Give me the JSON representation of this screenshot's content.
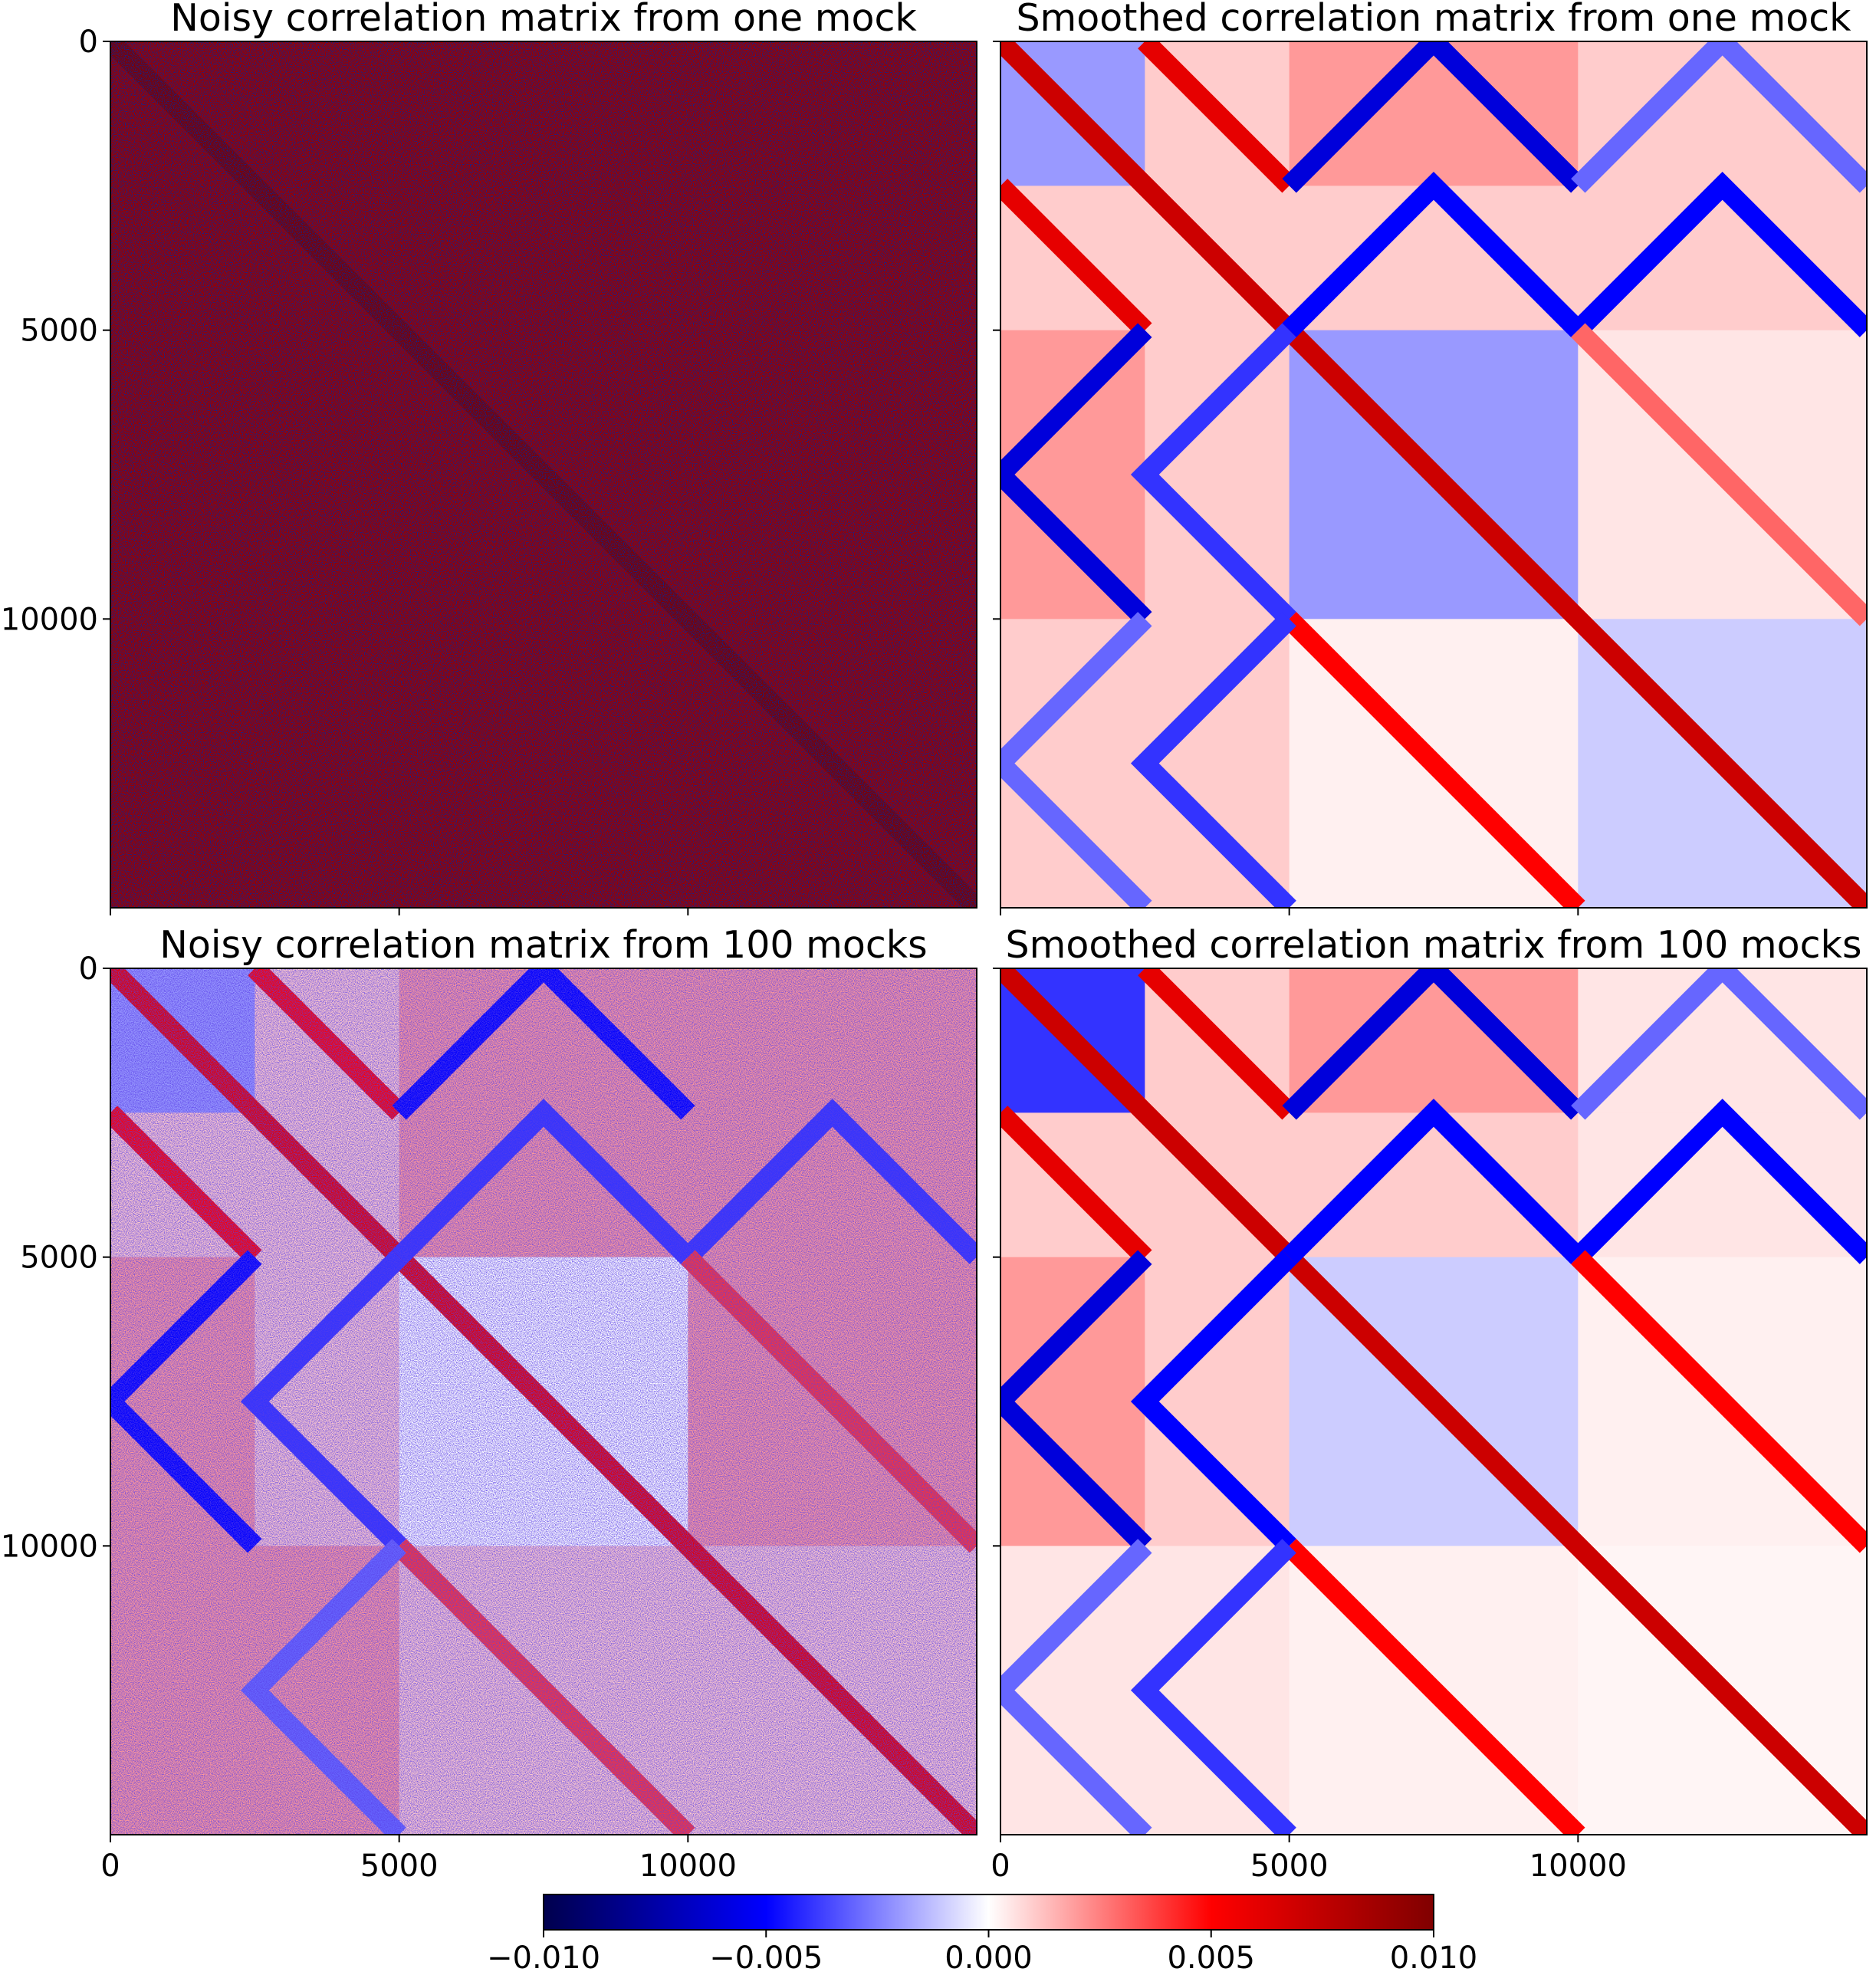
{
  "chart_data": [
    {
      "type": "heatmap",
      "title": "Noisy correlation matrix from one mock",
      "colormap": "seismic",
      "clim": [
        -0.01,
        0.01
      ],
      "xlim": [
        0,
        15000
      ],
      "ylim": [
        15000,
        0
      ],
      "xticks": [
        0,
        5000,
        10000
      ],
      "yticks": [
        0,
        5000,
        10000
      ],
      "block_edges": [
        0,
        2500,
        5000,
        10000,
        15000
      ],
      "blocks": [
        [
          0.009,
          0.009,
          0.009,
          0.009
        ],
        [
          0.009,
          0.009,
          0.009,
          0.009
        ],
        [
          0.009,
          0.009,
          0.009,
          0.009
        ],
        [
          0.009,
          0.009,
          0.009,
          0.009
        ]
      ],
      "segments": [
        {
          "points": [
            [
              0,
              0
            ],
            [
              15000,
              15000
            ]
          ],
          "value": 0.01
        }
      ]
    },
    {
      "type": "heatmap",
      "title": "Smoothed correlation matrix from one mock",
      "colormap": "seismic",
      "clim": [
        -0.01,
        0.01
      ],
      "xlim": [
        0,
        15000
      ],
      "ylim": [
        15000,
        0
      ],
      "xticks": [
        0,
        5000,
        10000
      ],
      "yticks": [
        0,
        5000,
        10000
      ],
      "block_edges": [
        0,
        2500,
        5000,
        10000,
        15000
      ],
      "blocks": [
        [
          -0.002,
          0.001,
          0.002,
          0.001
        ],
        [
          0.001,
          0.001,
          0.001,
          0.001
        ],
        [
          0.002,
          0.001,
          -0.002,
          0.0005
        ],
        [
          0.001,
          0.001,
          0.0003,
          -0.001
        ]
      ],
      "segments": [
        {
          "points": [
            [
              0,
              0
            ],
            [
              15000,
              15000
            ]
          ],
          "value": 0.007
        },
        {
          "points": [
            [
              2500,
              0
            ],
            [
              5000,
              2500
            ]
          ],
          "value": 0.006
        },
        {
          "points": [
            [
              0,
              2500
            ],
            [
              2500,
              5000
            ]
          ],
          "value": 0.006
        },
        {
          "points": [
            [
              5000,
              2500
            ],
            [
              7500,
              0
            ],
            [
              10000,
              2500
            ]
          ],
          "value": -0.006
        },
        {
          "points": [
            [
              10000,
              2500
            ],
            [
              12500,
              0
            ],
            [
              15000,
              2500
            ]
          ],
          "value": -0.003
        },
        {
          "points": [
            [
              5000,
              5000
            ],
            [
              7500,
              2500
            ],
            [
              10000,
              5000
            ]
          ],
          "value": -0.005
        },
        {
          "points": [
            [
              10000,
              5000
            ],
            [
              12500,
              2500
            ],
            [
              15000,
              5000
            ]
          ],
          "value": -0.005
        },
        {
          "points": [
            [
              2500,
              5000
            ],
            [
              0,
              7500
            ],
            [
              2500,
              10000
            ]
          ],
          "value": -0.006
        },
        {
          "points": [
            [
              5000,
              5000
            ],
            [
              2500,
              7500
            ],
            [
              5000,
              10000
            ]
          ],
          "value": -0.004
        },
        {
          "points": [
            [
              10000,
              5000
            ],
            [
              15000,
              10000
            ]
          ],
          "value": 0.003
        },
        {
          "points": [
            [
              5000,
              10000
            ],
            [
              10000,
              15000
            ]
          ],
          "value": 0.005
        },
        {
          "points": [
            [
              2500,
              10000
            ],
            [
              0,
              12500
            ],
            [
              2500,
              15000
            ]
          ],
          "value": -0.003
        },
        {
          "points": [
            [
              5000,
              10000
            ],
            [
              2500,
              12500
            ],
            [
              5000,
              15000
            ]
          ],
          "value": -0.004
        }
      ]
    },
    {
      "type": "heatmap",
      "title": "Noisy correlation matrix from 100 mocks",
      "colormap": "seismic",
      "clim": [
        -0.01,
        0.01
      ],
      "xlim": [
        0,
        15000
      ],
      "ylim": [
        15000,
        0
      ],
      "xticks": [
        0,
        5000,
        10000
      ],
      "yticks": [
        0,
        5000,
        10000
      ],
      "block_edges": [
        0,
        2500,
        5000,
        10000,
        15000
      ],
      "blocks": [
        [
          -0.002,
          0.001,
          0.002,
          0.002
        ],
        [
          0.001,
          0.001,
          0.002,
          0.002
        ],
        [
          0.002,
          0.001,
          0.0,
          0.002
        ],
        [
          0.002,
          0.002,
          0.001,
          0.001
        ]
      ],
      "segments": [
        {
          "points": [
            [
              0,
              0
            ],
            [
              15000,
              15000
            ]
          ],
          "value": 0.006
        },
        {
          "points": [
            [
              2500,
              0
            ],
            [
              5000,
              2500
            ]
          ],
          "value": 0.005
        },
        {
          "points": [
            [
              0,
              2500
            ],
            [
              2500,
              5000
            ]
          ],
          "value": 0.005
        },
        {
          "points": [
            [
              5000,
              2500
            ],
            [
              7500,
              0
            ],
            [
              10000,
              2500
            ]
          ],
          "value": -0.005
        },
        {
          "points": [
            [
              5000,
              5000
            ],
            [
              7500,
              2500
            ],
            [
              10000,
              5000
            ]
          ],
          "value": -0.004
        },
        {
          "points": [
            [
              10000,
              5000
            ],
            [
              12500,
              2500
            ],
            [
              15000,
              5000
            ]
          ],
          "value": -0.004
        },
        {
          "points": [
            [
              2500,
              5000
            ],
            [
              0,
              7500
            ],
            [
              2500,
              10000
            ]
          ],
          "value": -0.005
        },
        {
          "points": [
            [
              5000,
              5000
            ],
            [
              2500,
              7500
            ],
            [
              5000,
              10000
            ]
          ],
          "value": -0.004
        },
        {
          "points": [
            [
              10000,
              5000
            ],
            [
              15000,
              10000
            ]
          ],
          "value": 0.004
        },
        {
          "points": [
            [
              5000,
              10000
            ],
            [
              10000,
              15000
            ]
          ],
          "value": 0.004
        },
        {
          "points": [
            [
              5000,
              10000
            ],
            [
              2500,
              12500
            ],
            [
              5000,
              15000
            ]
          ],
          "value": -0.003
        }
      ]
    },
    {
      "type": "heatmap",
      "title": "Smoothed correlation matrix from 100 mocks",
      "colormap": "seismic",
      "clim": [
        -0.01,
        0.01
      ],
      "xlim": [
        0,
        15000
      ],
      "ylim": [
        15000,
        0
      ],
      "xticks": [
        0,
        5000,
        10000
      ],
      "yticks": [
        0,
        5000,
        10000
      ],
      "block_edges": [
        0,
        2500,
        5000,
        10000,
        15000
      ],
      "blocks": [
        [
          -0.004,
          0.001,
          0.002,
          0.0005
        ],
        [
          0.001,
          0.001,
          0.001,
          0.0005
        ],
        [
          0.002,
          0.001,
          -0.001,
          0.0003
        ],
        [
          0.0005,
          0.0005,
          0.0003,
          0.0002
        ]
      ],
      "segments": [
        {
          "points": [
            [
              0,
              0
            ],
            [
              15000,
              15000
            ]
          ],
          "value": 0.007
        },
        {
          "points": [
            [
              2500,
              0
            ],
            [
              5000,
              2500
            ]
          ],
          "value": 0.006
        },
        {
          "points": [
            [
              0,
              2500
            ],
            [
              2500,
              5000
            ]
          ],
          "value": 0.006
        },
        {
          "points": [
            [
              5000,
              2500
            ],
            [
              7500,
              0
            ],
            [
              10000,
              2500
            ]
          ],
          "value": -0.006
        },
        {
          "points": [
            [
              10000,
              2500
            ],
            [
              12500,
              0
            ],
            [
              15000,
              2500
            ]
          ],
          "value": -0.003
        },
        {
          "points": [
            [
              5000,
              5000
            ],
            [
              7500,
              2500
            ],
            [
              10000,
              5000
            ]
          ],
          "value": -0.005
        },
        {
          "points": [
            [
              10000,
              5000
            ],
            [
              12500,
              2500
            ],
            [
              15000,
              5000
            ]
          ],
          "value": -0.005
        },
        {
          "points": [
            [
              2500,
              5000
            ],
            [
              0,
              7500
            ],
            [
              2500,
              10000
            ]
          ],
          "value": -0.006
        },
        {
          "points": [
            [
              5000,
              5000
            ],
            [
              2500,
              7500
            ],
            [
              5000,
              10000
            ]
          ],
          "value": -0.005
        },
        {
          "points": [
            [
              10000,
              5000
            ],
            [
              15000,
              10000
            ]
          ],
          "value": 0.005
        },
        {
          "points": [
            [
              5000,
              10000
            ],
            [
              10000,
              15000
            ]
          ],
          "value": 0.005
        },
        {
          "points": [
            [
              2500,
              10000
            ],
            [
              0,
              12500
            ],
            [
              2500,
              15000
            ]
          ],
          "value": -0.003
        },
        {
          "points": [
            [
              5000,
              10000
            ],
            [
              2500,
              12500
            ],
            [
              5000,
              15000
            ]
          ],
          "value": -0.004
        }
      ]
    },
    {
      "type": "colorbar",
      "colormap": "seismic",
      "clim": [
        -0.01,
        0.01
      ],
      "ticks": [
        {
          "value": -0.01,
          "label": "−0.010"
        },
        {
          "value": -0.005,
          "label": "−0.005"
        },
        {
          "value": 0,
          "label": "0.000"
        },
        {
          "value": 0.005,
          "label": "0.005"
        },
        {
          "value": 0.01,
          "label": "0.010"
        }
      ]
    }
  ]
}
